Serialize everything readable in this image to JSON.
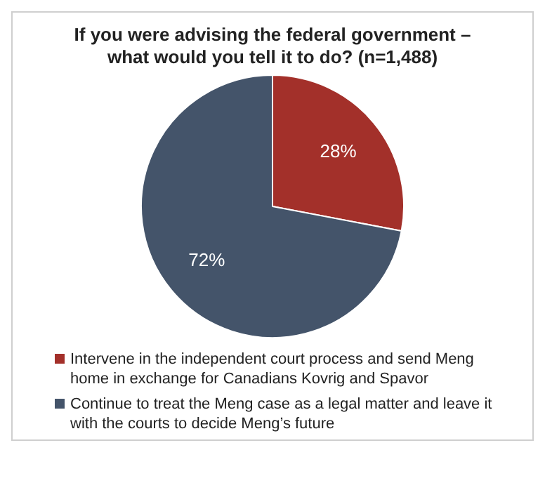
{
  "chart_data": {
    "type": "pie",
    "title": "If you were advising the federal government – what would you tell it to do? (n=1,488)",
    "categories": [
      "Intervene in the independent court process and send Meng home in exchange for Canadians Kovrig and Spavor",
      "Continue to treat the Meng case as a legal matter and leave it with the courts to decide Meng’s future"
    ],
    "values": [
      28,
      72
    ],
    "colors": [
      "#a3302a",
      "#44546a"
    ],
    "value_labels": [
      "28%",
      "72%"
    ],
    "legend": "bottom"
  }
}
